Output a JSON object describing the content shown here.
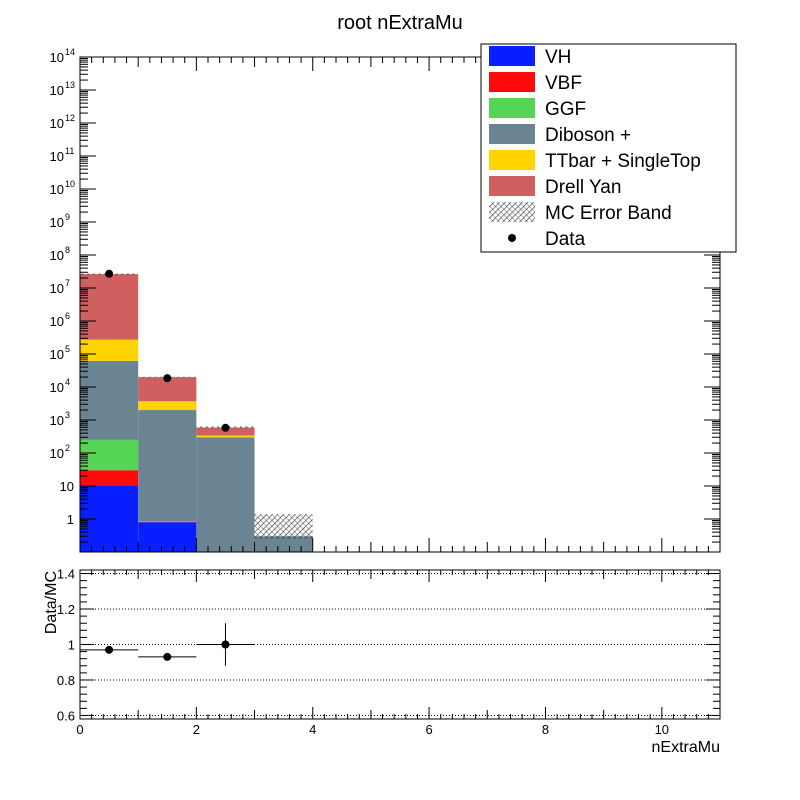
{
  "title": "root nExtraMu",
  "colors": {
    "VH": "#0a1fff",
    "VBF": "#ff0a0a",
    "GGF": "#55d455",
    "Diboson": "#6b8494",
    "TTbar": "#ffd400",
    "DrellYan": "#d05f5f"
  },
  "chart_data": [
    {
      "type": "bar",
      "subtype": "stacked-histogram",
      "title": "root nExtraMu",
      "xlim": [
        0,
        11
      ],
      "ylim": [
        0.1,
        100000000000000
      ],
      "yscale": "log",
      "bin_edges": [
        0,
        1,
        2,
        3,
        4
      ],
      "x_ticks": [
        "0",
        "2",
        "4",
        "6",
        "8",
        "10"
      ],
      "y_ticks": [
        "1",
        "10",
        "10^2",
        "10^3",
        "10^4",
        "10^5",
        "10^6",
        "10^7",
        "10^8",
        "10^9",
        "10^10",
        "10^11",
        "10^12",
        "10^13",
        "10^14"
      ],
      "y_tick_base": [
        "1",
        "10",
        "10",
        "10",
        "10",
        "10",
        "10",
        "10",
        "10",
        "10",
        "10",
        "10",
        "10",
        "10",
        "10"
      ],
      "y_tick_exp": [
        "",
        "",
        "2",
        "3",
        "4",
        "5",
        "6",
        "7",
        "8",
        "9",
        "10",
        "11",
        "12",
        "13",
        "14"
      ],
      "series": [
        {
          "name": "VH",
          "color_key": "VH",
          "values": [
            10,
            0.8,
            0,
            0
          ]
        },
        {
          "name": "VBF",
          "color_key": "VBF",
          "values": [
            20,
            0.03,
            0,
            0
          ]
        },
        {
          "name": "GGF",
          "color_key": "GGF",
          "values": [
            220,
            0.02,
            0,
            0
          ]
        },
        {
          "name": "Diboson +",
          "color_key": "Diboson",
          "values": [
            62000,
            2000,
            300,
            0.3
          ]
        },
        {
          "name": "TTbar + SingleTop",
          "color_key": "TTbar",
          "values": [
            210000,
            1700,
            40,
            0
          ]
        },
        {
          "name": "Drell Yan",
          "color_key": "DrellYan",
          "values": [
            26000000,
            16000,
            250,
            0
          ]
        }
      ],
      "mc_error_band": [
        {
          "bin": 0,
          "low": 26000000,
          "high": 27500000
        },
        {
          "bin": 1,
          "low": 19000,
          "high": 20500
        },
        {
          "bin": 2,
          "low": 560,
          "high": 640
        },
        {
          "bin": 3,
          "low": 0.25,
          "high": 1.4
        }
      ],
      "data_points": [
        {
          "x": 0.5,
          "y": 27000000
        },
        {
          "x": 1.5,
          "y": 18500
        },
        {
          "x": 2.5,
          "y": 580
        }
      ],
      "legend": {
        "placement": "top-right",
        "entries": [
          "VH",
          "VBF",
          "GGF",
          "Diboson +",
          "TTbar + SingleTop",
          "Drell Yan",
          "MC Error Band",
          "Data"
        ]
      }
    },
    {
      "type": "scatter",
      "subtype": "ratio",
      "ylabel": "Data/MC",
      "xlabel": "nExtraMu",
      "xlim": [
        0,
        11
      ],
      "ylim": [
        0.58,
        1.42
      ],
      "x_ticks": [
        "0",
        "2",
        "4",
        "6",
        "8",
        "10"
      ],
      "y_ticks": [
        "0.6",
        "0.8",
        "1",
        "1.2",
        "1.4"
      ],
      "grid": true,
      "points": [
        {
          "x": 0.5,
          "y": 0.97,
          "xerr": 0.5,
          "yerr": 0.005
        },
        {
          "x": 1.5,
          "y": 0.93,
          "xerr": 0.5,
          "yerr": 0.01
        },
        {
          "x": 2.5,
          "y": 1.0,
          "xerr": 0.5,
          "yerr": 0.12
        }
      ]
    }
  ]
}
